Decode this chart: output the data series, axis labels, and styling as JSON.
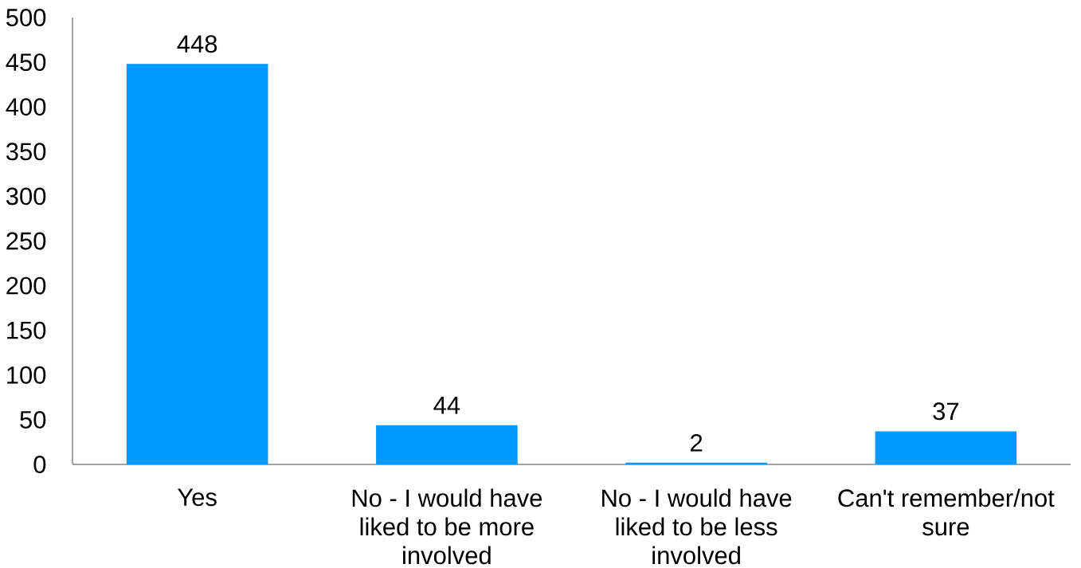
{
  "chart_data": {
    "type": "bar",
    "categories": [
      "Yes",
      "No - I would have liked to be more involved",
      "No - I would have liked to be less involved",
      "Can't remember/not sure"
    ],
    "values": [
      448,
      44,
      2,
      37
    ],
    "color": "#0099ff",
    "ylim": [
      0,
      500
    ],
    "yticks": [
      0,
      50,
      100,
      150,
      200,
      250,
      300,
      350,
      400,
      450,
      500
    ],
    "data_labels": true
  }
}
